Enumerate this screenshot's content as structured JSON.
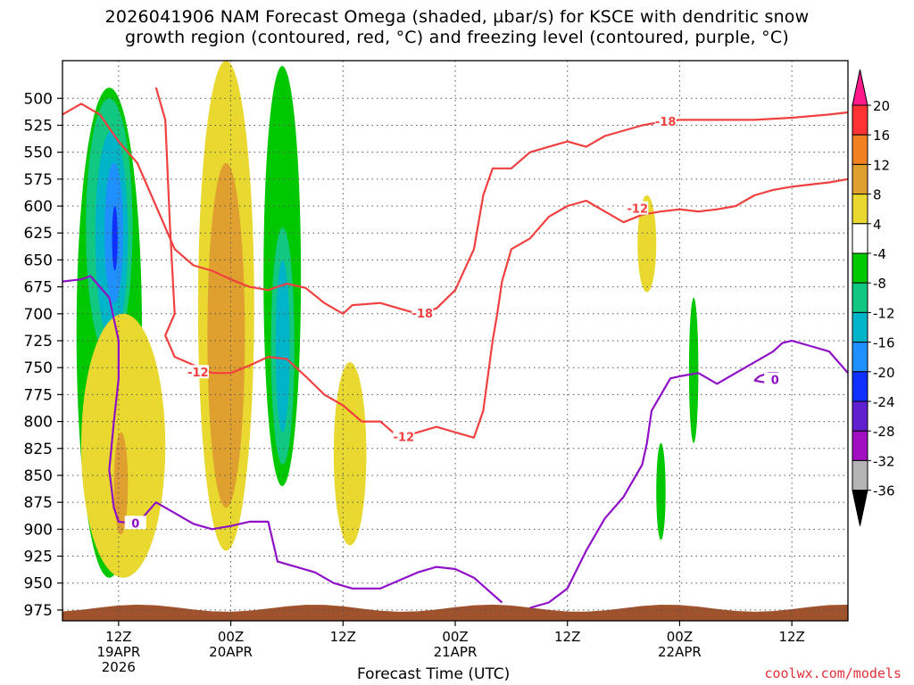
{
  "title_line1": "2026041906 NAM Forecast Omega (shaded, µbar/s) for KSCE with dendritic snow",
  "title_line2": "growth region (contoured, red, °C) and freezing level (contoured, purple, °C)",
  "credit": "coolwx.com/models",
  "chart_data": {
    "type": "heatmap",
    "title": "2026041906 NAM Forecast Omega (shaded, µbar/s) for KSCE with dendritic snow growth region (contoured, red, °C) and freezing level (contoured, purple, °C)",
    "xlabel": "Forecast Time (UTC)",
    "ylabel": "",
    "x_range_hours": [
      6,
      90
    ],
    "x_ticks": [
      {
        "hour": 12,
        "lines": [
          "12Z",
          "19APR",
          "2026"
        ]
      },
      {
        "hour": 24,
        "lines": [
          "00Z",
          "20APR"
        ]
      },
      {
        "hour": 36,
        "lines": [
          "12Z"
        ]
      },
      {
        "hour": 48,
        "lines": [
          "00Z",
          "21APR"
        ]
      },
      {
        "hour": 60,
        "lines": [
          "12Z"
        ]
      },
      {
        "hour": 72,
        "lines": [
          "00Z",
          "22APR"
        ]
      },
      {
        "hour": 84,
        "lines": [
          "12Z"
        ]
      }
    ],
    "y_axis": "pressure (mb), inverted",
    "y_range": [
      985,
      465
    ],
    "y_ticks": [
      "500",
      "525",
      "550",
      "575",
      "600",
      "625",
      "650",
      "675",
      "700",
      "725",
      "750",
      "775",
      "800",
      "825",
      "850",
      "875",
      "900",
      "925",
      "950",
      "975"
    ],
    "grid": "dotted",
    "colorbar": {
      "orientation": "vertical",
      "position": "right",
      "levels": [
        "20",
        "16",
        "12",
        "8",
        "4",
        "-4",
        "-8",
        "-12",
        "-16",
        "-20",
        "-24",
        "-28",
        "-32",
        "-36"
      ],
      "colors": [
        "#ff1a8c",
        "#ff3333",
        "#f08020",
        "#e0a030",
        "#e8d830",
        "#ffffff",
        "#00c800",
        "#10c880",
        "#00b4c8",
        "#1e90ff",
        "#1030ff",
        "#6020d0",
        "#a010c0",
        "#b4b4b4",
        "#000000"
      ]
    },
    "omega_regions": [
      {
        "level": "-4 to -8",
        "color": "#00c800",
        "x_hours": [
          7.5,
          14.5
        ],
        "p": [
          490,
          945
        ]
      },
      {
        "level": "-8 to -12",
        "color": "#10c880",
        "x_hours": [
          8.5,
          13.5
        ],
        "p": [
          500,
          740
        ]
      },
      {
        "level": "-12 to -16",
        "color": "#00b4c8",
        "x_hours": [
          9.5,
          13
        ],
        "p": [
          530,
          725
        ]
      },
      {
        "level": "-16 to -20",
        "color": "#1e90ff",
        "x_hours": [
          10.5,
          12.5
        ],
        "p": [
          560,
          690
        ]
      },
      {
        "level": "-20 to -24",
        "color": "#1030ff",
        "x_hours": [
          11.3,
          11.9
        ],
        "p": [
          600,
          660
        ]
      },
      {
        "level": "4 to 8",
        "color": "#e8d830",
        "x_hours": [
          20.5,
          26.5
        ],
        "p": [
          465,
          920
        ]
      },
      {
        "level": "8 to 12",
        "color": "#e0a030",
        "x_hours": [
          21.5,
          25.5
        ],
        "p": [
          560,
          880
        ]
      },
      {
        "level": "-4 to -8",
        "color": "#00c800",
        "x_hours": [
          27.5,
          31.5
        ],
        "p": [
          470,
          860
        ]
      },
      {
        "level": "-8 to -12",
        "color": "#10c880",
        "x_hours": [
          28.3,
          30.8
        ],
        "p": [
          620,
          840
        ]
      },
      {
        "level": "-12 to -16",
        "color": "#00b4c8",
        "x_hours": [
          28.8,
          30.3
        ],
        "p": [
          650,
          810
        ]
      },
      {
        "level": "4 to 8",
        "color": "#e8d830",
        "x_hours": [
          8,
          17
        ],
        "p": [
          700,
          945
        ]
      },
      {
        "level": "8 to 12",
        "color": "#e0a030",
        "x_hours": [
          11.5,
          13
        ],
        "p": [
          810,
          905
        ]
      },
      {
        "level": "4 to 8",
        "color": "#e8d830",
        "x_hours": [
          35,
          38.5
        ],
        "p": [
          745,
          915
        ]
      },
      {
        "level": "4 to 8",
        "color": "#e8d830",
        "x_hours": [
          67.5,
          69.5
        ],
        "p": [
          590,
          680
        ]
      },
      {
        "level": "-4 to -8",
        "color": "#00c800",
        "x_hours": [
          73,
          74
        ],
        "p": [
          685,
          820
        ]
      },
      {
        "level": "-4 to -8",
        "color": "#00c800",
        "x_hours": [
          69.5,
          70.5
        ],
        "p": [
          820,
          910
        ]
      }
    ],
    "dgz_contours": [
      {
        "label": "-18",
        "points": [
          [
            6,
            515
          ],
          [
            8,
            505
          ],
          [
            10,
            515
          ],
          [
            12,
            540
          ],
          [
            14,
            560
          ],
          [
            16,
            600
          ],
          [
            18,
            640
          ],
          [
            20,
            655
          ],
          [
            22,
            660
          ],
          [
            24,
            668
          ],
          [
            26,
            675
          ],
          [
            28,
            678
          ],
          [
            30,
            672
          ],
          [
            32,
            676
          ],
          [
            34,
            690
          ],
          [
            36,
            700
          ],
          [
            37,
            692
          ],
          [
            40,
            690
          ],
          [
            42,
            695
          ],
          [
            44,
            700
          ],
          [
            46,
            695
          ],
          [
            48,
            678
          ],
          [
            50,
            640
          ],
          [
            51,
            590
          ],
          [
            52,
            565
          ],
          [
            54,
            565
          ],
          [
            56,
            550
          ],
          [
            58,
            545
          ],
          [
            60,
            540
          ],
          [
            62,
            545
          ],
          [
            64,
            535
          ],
          [
            66,
            530
          ],
          [
            68,
            525
          ],
          [
            70,
            522
          ],
          [
            72,
            520
          ],
          [
            76,
            520
          ],
          [
            80,
            520
          ],
          [
            84,
            518
          ],
          [
            88,
            515
          ],
          [
            90,
            513
          ]
        ]
      },
      {
        "label": "-12",
        "points": [
          [
            16,
            490
          ],
          [
            17,
            520
          ],
          [
            17.5,
            620
          ],
          [
            18,
            700
          ],
          [
            17,
            720
          ],
          [
            18,
            740
          ],
          [
            22,
            755
          ],
          [
            24,
            755
          ],
          [
            26,
            748
          ],
          [
            28,
            740
          ],
          [
            30,
            742
          ],
          [
            32,
            758
          ],
          [
            34,
            775
          ],
          [
            36,
            785
          ],
          [
            38,
            800
          ],
          [
            40,
            800
          ],
          [
            42,
            815
          ],
          [
            44,
            810
          ],
          [
            46,
            805
          ],
          [
            48,
            810
          ],
          [
            50,
            815
          ],
          [
            51,
            790
          ],
          [
            52,
            725
          ],
          [
            52.5,
            700
          ],
          [
            53,
            670
          ],
          [
            54,
            640
          ],
          [
            56,
            630
          ],
          [
            58,
            610
          ],
          [
            60,
            600
          ],
          [
            62,
            595
          ],
          [
            64,
            605
          ],
          [
            66,
            615
          ],
          [
            68,
            608
          ],
          [
            70,
            605
          ],
          [
            72,
            603
          ],
          [
            74,
            605
          ],
          [
            76,
            603
          ],
          [
            78,
            600
          ],
          [
            80,
            590
          ],
          [
            82,
            585
          ],
          [
            84,
            582
          ],
          [
            86,
            580
          ],
          [
            88,
            578
          ],
          [
            90,
            575
          ]
        ]
      }
    ],
    "freezing_contours": [
      {
        "label": "0",
        "points": [
          [
            6,
            670
          ],
          [
            8,
            668
          ],
          [
            9,
            665
          ],
          [
            10,
            675
          ],
          [
            11,
            685
          ],
          [
            12,
            725
          ],
          [
            12,
            760
          ],
          [
            11.5,
            800
          ],
          [
            11,
            845
          ],
          [
            11.5,
            880
          ],
          [
            12,
            893
          ],
          [
            14,
            895
          ],
          [
            16,
            875
          ],
          [
            18,
            885
          ],
          [
            20,
            895
          ],
          [
            22,
            900
          ],
          [
            24,
            897
          ],
          [
            26,
            893
          ],
          [
            28,
            893
          ],
          [
            29,
            930
          ],
          [
            31,
            935
          ],
          [
            33,
            940
          ],
          [
            35,
            950
          ],
          [
            37,
            955
          ],
          [
            40,
            955
          ],
          [
            44,
            940
          ],
          [
            46,
            935
          ],
          [
            48,
            937
          ],
          [
            50,
            945
          ],
          [
            53,
            968
          ]
        ]
      },
      {
        "label": "",
        "points": [
          [
            56,
            973
          ],
          [
            58,
            968
          ],
          [
            60,
            955
          ],
          [
            62,
            920
          ],
          [
            64,
            890
          ],
          [
            66,
            870
          ],
          [
            68,
            840
          ],
          [
            68.5,
            820
          ],
          [
            69,
            790
          ],
          [
            70,
            775
          ],
          [
            71,
            760
          ],
          [
            72,
            758
          ],
          [
            74,
            755
          ],
          [
            76,
            765
          ],
          [
            78,
            755
          ],
          [
            80,
            745
          ],
          [
            82,
            735
          ],
          [
            83,
            727
          ],
          [
            84,
            725
          ],
          [
            86,
            730
          ],
          [
            88,
            735
          ],
          [
            90,
            755
          ]
        ]
      },
      {
        "label": "0",
        "points": [
          [
            80,
            762
          ],
          [
            82,
            765
          ],
          [
            82.5,
            755
          ],
          [
            81.5,
            755
          ],
          [
            80.5,
            758
          ],
          [
            80,
            762
          ]
        ]
      }
    ],
    "terrain_pressure": 975
  }
}
